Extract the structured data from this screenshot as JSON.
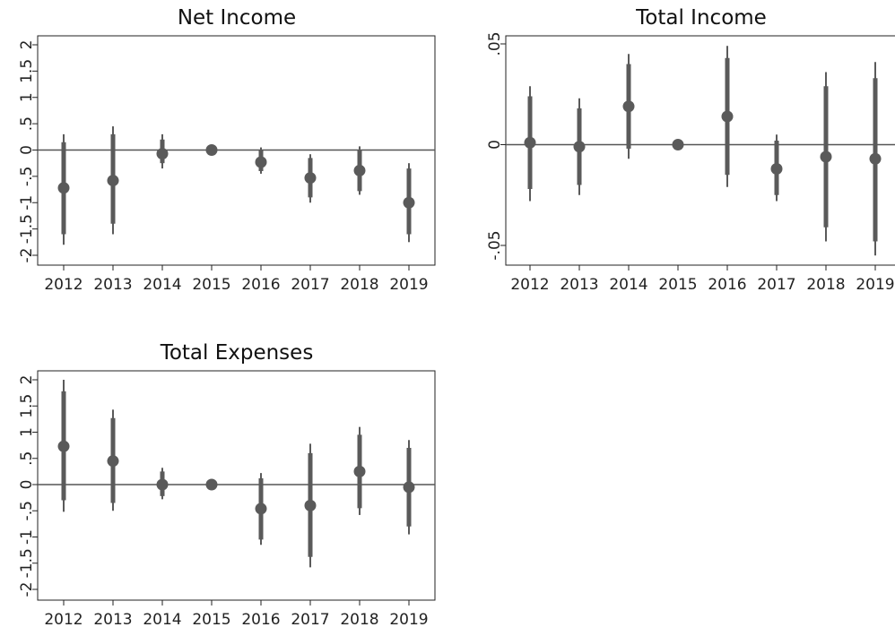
{
  "chart_data": [
    {
      "type": "scatter",
      "title": "Net Income",
      "x": [
        "2012",
        "2013",
        "2014",
        "2015",
        "2016",
        "2017",
        "2018",
        "2019"
      ],
      "yticks": [
        "-2",
        "-1.5",
        "-1",
        "-.5",
        "0",
        ".5",
        "1",
        "1.5",
        "2"
      ],
      "ylim": [
        -2.1,
        2.1
      ],
      "estimates": [
        -0.72,
        -0.58,
        -0.07,
        0.0,
        -0.23,
        -0.53,
        -0.39,
        -1.0
      ],
      "ci_95": [
        [
          -1.8,
          0.3
        ],
        [
          -1.6,
          0.45
        ],
        [
          -0.35,
          0.3
        ],
        [
          0.0,
          0.0
        ],
        [
          -0.45,
          0.05
        ],
        [
          -1.0,
          -0.08
        ],
        [
          -0.85,
          0.07
        ],
        [
          -1.75,
          -0.25
        ]
      ],
      "ci_90": [
        [
          -1.6,
          0.15
        ],
        [
          -1.4,
          0.3
        ],
        [
          -0.25,
          0.2
        ],
        [
          0.0,
          0.0
        ],
        [
          -0.4,
          0.0
        ],
        [
          -0.9,
          -0.15
        ],
        [
          -0.78,
          0.0
        ],
        [
          -1.6,
          -0.35
        ]
      ]
    },
    {
      "type": "scatter",
      "title": "Total Income",
      "x": [
        "2012",
        "2013",
        "2014",
        "2015",
        "2016",
        "2017",
        "2018",
        "2019"
      ],
      "yticks": [
        "-.05",
        "0",
        ".05"
      ],
      "ylim": [
        -0.06,
        0.052
      ],
      "estimates": [
        0.001,
        -0.001,
        0.019,
        0.0,
        0.014,
        -0.012,
        -0.006,
        -0.007
      ],
      "ci_95": [
        [
          -0.028,
          0.029
        ],
        [
          -0.025,
          0.023
        ],
        [
          -0.007,
          0.045
        ],
        [
          0.0,
          0.0
        ],
        [
          -0.021,
          0.049
        ],
        [
          -0.028,
          0.005
        ],
        [
          -0.048,
          0.036
        ],
        [
          -0.055,
          0.041
        ]
      ],
      "ci_90": [
        [
          -0.022,
          0.024
        ],
        [
          -0.02,
          0.018
        ],
        [
          -0.002,
          0.04
        ],
        [
          0.0,
          0.0
        ],
        [
          -0.015,
          0.043
        ],
        [
          -0.025,
          0.002
        ],
        [
          -0.041,
          0.029
        ],
        [
          -0.048,
          0.033
        ]
      ]
    },
    {
      "type": "scatter",
      "title": "Total Expenses",
      "x": [
        "2012",
        "2013",
        "2014",
        "2015",
        "2016",
        "2017",
        "2018",
        "2019"
      ],
      "yticks": [
        "-2",
        "-1.5",
        "-1",
        "-.5",
        "0",
        ".5",
        "1",
        "1.5",
        "2"
      ],
      "ylim": [
        -2.1,
        2.1
      ],
      "estimates": [
        0.73,
        0.45,
        0.0,
        0.0,
        -0.46,
        -0.4,
        0.25,
        -0.05
      ],
      "ci_95": [
        [
          -0.52,
          2.0
        ],
        [
          -0.5,
          1.43
        ],
        [
          -0.28,
          0.32
        ],
        [
          0.0,
          0.0
        ],
        [
          -1.15,
          0.22
        ],
        [
          -1.58,
          0.78
        ],
        [
          -0.58,
          1.1
        ],
        [
          -0.95,
          0.85
        ]
      ],
      "ci_90": [
        [
          -0.3,
          1.78
        ],
        [
          -0.35,
          1.27
        ],
        [
          -0.22,
          0.25
        ],
        [
          0.0,
          0.0
        ],
        [
          -1.05,
          0.12
        ],
        [
          -1.38,
          0.6
        ],
        [
          -0.45,
          0.95
        ],
        [
          -0.8,
          0.7
        ]
      ]
    }
  ]
}
